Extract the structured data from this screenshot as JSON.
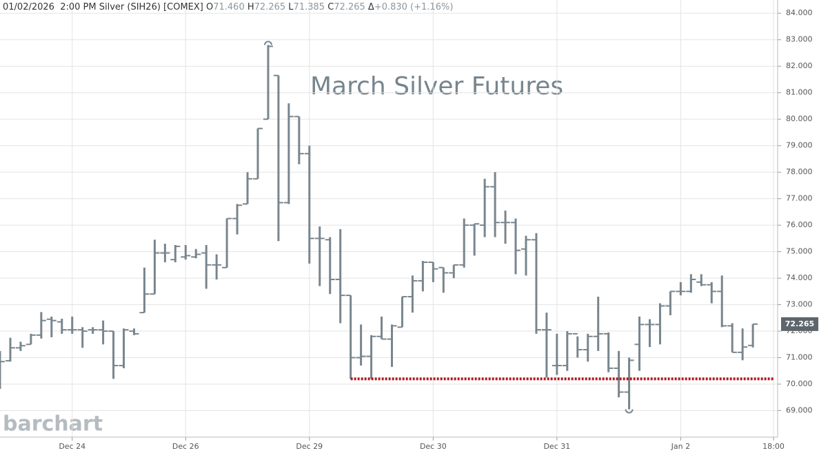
{
  "header": {
    "date": "01/02/2026",
    "time": "2:00 PM",
    "symbol": "Silver (SIH26) [COMEX]",
    "quote": [
      {
        "label": "O",
        "value": "71.460"
      },
      {
        "label": "H",
        "value": "72.265"
      },
      {
        "label": "L",
        "value": "71.385"
      },
      {
        "label": "C",
        "value": "72.265"
      },
      {
        "label": "Δ",
        "value": "+0.830 (+1.16%)"
      }
    ]
  },
  "watermark": "barchart",
  "chart_data": {
    "type": "ohlc",
    "annotation": "March Silver Futures",
    "color": "#78858e",
    "open": [
      71.0,
      70.88,
      71.37,
      71.5,
      71.85,
      72.45,
      72.35,
      72.05,
      72.05,
      72.05,
      72.05,
      72.0,
      70.7,
      72.0,
      72.7,
      73.4,
      74.95,
      74.7,
      74.8,
      74.8,
      74.95,
      74.5,
      74.4,
      76.25,
      76.8,
      77.75,
      80.0,
      81.65,
      76.85,
      80.1,
      78.7,
      75.5,
      75.45,
      73.95,
      73.35,
      71.0,
      71.05,
      71.8,
      71.7,
      72.15,
      73.3,
      73.9,
      74.6,
      74.4,
      74.2,
      74.5,
      76.0,
      76.0,
      77.45,
      76.1,
      76.1,
      75.1,
      75.45,
      72.05,
      70.7,
      70.7,
      71.9,
      71.3,
      71.8,
      71.9,
      70.6,
      69.7,
      71.5,
      72.25,
      72.25,
      72.95,
      73.5,
      73.5,
      73.85,
      73.75,
      73.5,
      72.2,
      71.2,
      71.46
    ],
    "high": [
      71.25,
      71.75,
      71.6,
      71.9,
      72.72,
      72.55,
      72.47,
      72.55,
      72.15,
      72.15,
      72.4,
      72.0,
      72.1,
      72.1,
      74.4,
      75.45,
      75.3,
      75.25,
      75.25,
      75.1,
      75.25,
      74.9,
      76.25,
      76.8,
      78.0,
      79.65,
      82.8,
      81.65,
      80.6,
      80.1,
      79.0,
      75.95,
      75.55,
      75.85,
      73.35,
      72.25,
      71.85,
      72.55,
      72.25,
      73.3,
      74.1,
      74.65,
      74.6,
      74.4,
      74.5,
      76.25,
      76.05,
      77.75,
      78.0,
      76.55,
      76.25,
      75.6,
      75.7,
      72.7,
      71.9,
      72.0,
      71.8,
      71.9,
      73.3,
      71.95,
      71.25,
      71.0,
      72.55,
      72.45,
      73.05,
      73.5,
      73.85,
      74.15,
      74.15,
      73.85,
      74.1,
      72.3,
      72.1,
      72.265
    ],
    "low": [
      69.82,
      70.85,
      71.25,
      71.5,
      71.72,
      71.77,
      71.9,
      71.9,
      71.37,
      71.9,
      71.5,
      70.2,
      70.6,
      71.85,
      72.7,
      73.4,
      74.6,
      74.6,
      74.7,
      74.75,
      73.6,
      73.95,
      74.4,
      75.65,
      76.8,
      77.75,
      80.0,
      75.4,
      76.8,
      78.3,
      74.55,
      73.7,
      73.4,
      72.3,
      70.2,
      70.7,
      70.2,
      71.7,
      70.65,
      72.15,
      72.7,
      73.5,
      73.85,
      73.45,
      74.0,
      74.4,
      74.85,
      75.55,
      75.55,
      75.3,
      74.15,
      74.1,
      71.9,
      70.25,
      70.35,
      70.5,
      71.0,
      70.85,
      71.25,
      70.45,
      69.5,
      69.05,
      70.5,
      71.4,
      71.5,
      72.6,
      73.35,
      73.45,
      73.7,
      73.05,
      72.15,
      71.2,
      70.9,
      71.385
    ],
    "close": [
      70.85,
      71.37,
      71.45,
      71.85,
      72.4,
      72.4,
      72.05,
      72.05,
      72.0,
      72.05,
      72.0,
      70.7,
      72.05,
      71.9,
      73.4,
      74.95,
      74.95,
      75.2,
      74.85,
      74.9,
      74.5,
      74.5,
      76.25,
      76.75,
      77.75,
      79.65,
      82.75,
      76.85,
      80.1,
      78.7,
      75.5,
      75.5,
      73.95,
      73.35,
      71.0,
      71.05,
      71.8,
      71.7,
      72.2,
      73.3,
      73.9,
      74.6,
      74.35,
      74.2,
      74.5,
      76.0,
      76.05,
      77.45,
      76.1,
      76.1,
      75.05,
      75.45,
      72.05,
      72.05,
      70.7,
      71.9,
      71.3,
      71.8,
      71.9,
      70.6,
      69.7,
      70.9,
      72.25,
      72.25,
      72.95,
      73.5,
      73.5,
      73.95,
      73.75,
      73.5,
      72.2,
      71.2,
      71.4,
      72.265
    ],
    "xlim": [
      0,
      75.4
    ],
    "xticks": [
      {
        "value": 7,
        "label": "Dec 24"
      },
      {
        "value": 18,
        "label": "Dec 26"
      },
      {
        "value": 30,
        "label": "Dec 29"
      },
      {
        "value": 42,
        "label": "Dec 30"
      },
      {
        "value": 54,
        "label": "Dec 31"
      },
      {
        "value": 66,
        "label": "Jan 2"
      },
      {
        "value": 75,
        "label": "18:00"
      }
    ],
    "ylim": [
      68.0,
      84.5
    ],
    "yticks": [
      {
        "value": 69,
        "label": "69.000"
      },
      {
        "value": 70,
        "label": "70.000"
      },
      {
        "value": 71,
        "label": "71.000"
      },
      {
        "value": 72,
        "label": "72.000"
      },
      {
        "value": 73,
        "label": "73.000"
      },
      {
        "value": 74,
        "label": "74.000"
      },
      {
        "value": 75,
        "label": "75.000"
      },
      {
        "value": 76,
        "label": "76.000"
      },
      {
        "value": 77,
        "label": "77.000"
      },
      {
        "value": 78,
        "label": "78.000"
      },
      {
        "value": 79,
        "label": "79.000"
      },
      {
        "value": 80,
        "label": "80.000"
      },
      {
        "value": 81,
        "label": "81.000"
      },
      {
        "value": 82,
        "label": "82.000"
      },
      {
        "value": 83,
        "label": "83.000"
      },
      {
        "value": 84,
        "label": "84.000"
      }
    ],
    "grid": true,
    "last_price": {
      "value": 72.265,
      "label": "72.265"
    },
    "reference_line": {
      "value": 70.2,
      "x_start": 34,
      "color": "#b0161e"
    }
  }
}
